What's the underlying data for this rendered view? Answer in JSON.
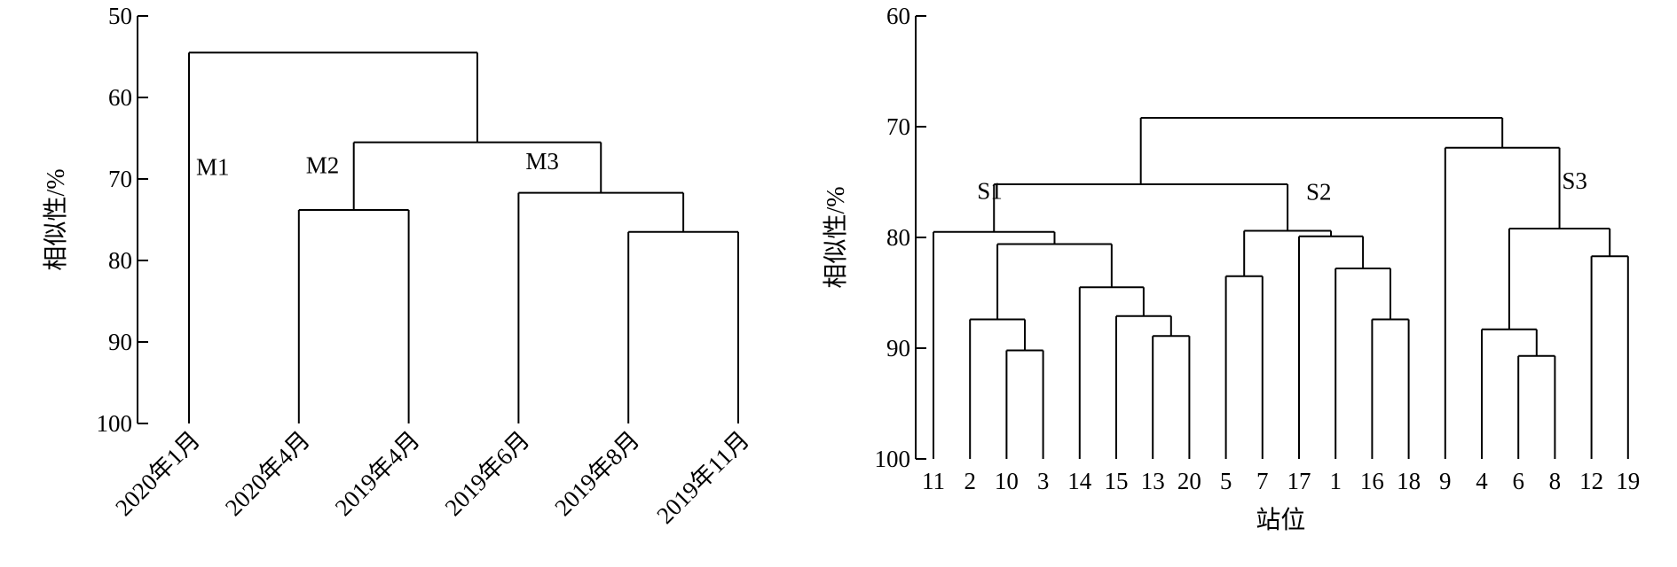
{
  "chart_data": [
    {
      "type": "dendrogram",
      "ylabel": "相似性/%",
      "xlabel": "",
      "ylim": [
        50,
        100
      ],
      "yticks": [
        50,
        60,
        70,
        80,
        90,
        100
      ],
      "leaves": [
        "2020年1月",
        "2020年4月",
        "2019年4月",
        "2019年6月",
        "2019年8月",
        "2019年11月"
      ],
      "merges": [
        {
          "left": "2019年8月",
          "right": "2019年11月",
          "similarity": 76.5
        },
        {
          "left": "2019年6月",
          "right": [
            "2019年8月",
            "2019年11月"
          ],
          "similarity": 71.7
        },
        {
          "left": "2020年4月",
          "right": "2019年4月",
          "similarity": 73.8
        },
        {
          "left": [
            "2020年4月",
            "2019年4月"
          ],
          "right": [
            "2019年6月",
            "2019年8月",
            "2019年11月"
          ],
          "similarity": 65.5
        },
        {
          "left": "2020年1月",
          "right": [
            "2020年4月",
            "2019年4月",
            "2019年6月",
            "2019年8月",
            "2019年11月"
          ],
          "similarity": 54.5
        }
      ],
      "tree": {
        "h": 54.5,
        "c": [
          {
            "leaf": "2020年1月"
          },
          {
            "h": 65.5,
            "c": [
              {
                "h": 73.8,
                "c": [
                  {
                    "leaf": "2020年4月"
                  },
                  {
                    "leaf": "2019年4月"
                  }
                ]
              },
              {
                "h": 71.7,
                "c": [
                  {
                    "leaf": "2019年6月"
                  },
                  {
                    "h": 76.5,
                    "c": [
                      {
                        "leaf": "2019年8月"
                      },
                      {
                        "leaf": "2019年11月"
                      }
                    ]
                  }
                ]
              }
            ]
          }
        ]
      },
      "cluster_labels": [
        {
          "text": "M1",
          "anchor_leaf": "2020年1月",
          "similarity": 69.5
        },
        {
          "text": "M2",
          "anchor_leaf": "2020年4月",
          "similarity": 69.3
        },
        {
          "text": "M3",
          "anchor_leaf": "2019年6月",
          "similarity": 68.8
        }
      ]
    },
    {
      "type": "dendrogram",
      "ylabel": "相似性/%",
      "xlabel": "站位",
      "ylim": [
        60,
        100
      ],
      "yticks": [
        60,
        70,
        80,
        90,
        100
      ],
      "leaves": [
        "11",
        "2",
        "10",
        "3",
        "14",
        "15",
        "13",
        "20",
        "5",
        "7",
        "17",
        "1",
        "16",
        "18",
        "9",
        "4",
        "6",
        "8",
        "12",
        "19"
      ],
      "merges": [
        {
          "left": "10",
          "right": "3",
          "similarity": 90.2
        },
        {
          "left": "2",
          "right": [
            "10",
            "3"
          ],
          "similarity": 87.4
        },
        {
          "left": "13",
          "right": "20",
          "similarity": 88.9
        },
        {
          "left": "15",
          "right": [
            "13",
            "20"
          ],
          "similarity": 87.1
        },
        {
          "left": "14",
          "right": [
            "15",
            "13",
            "20"
          ],
          "similarity": 84.5
        },
        {
          "left": [
            "2",
            "10",
            "3"
          ],
          "right": [
            "14",
            "15",
            "13",
            "20"
          ],
          "similarity": 80.6
        },
        {
          "left": "11",
          "right": [
            "2",
            "10",
            "3",
            "14",
            "15",
            "13",
            "20"
          ],
          "similarity": 79.5
        },
        {
          "left": "16",
          "right": "18",
          "similarity": 87.4
        },
        {
          "left": "1",
          "right": [
            "16",
            "18"
          ],
          "similarity": 82.8
        },
        {
          "left": "17",
          "right": [
            "1",
            "16",
            "18"
          ],
          "similarity": 79.9
        },
        {
          "left": "5",
          "right": "7",
          "similarity": 83.5
        },
        {
          "left": [
            "5",
            "7"
          ],
          "right": [
            "17",
            "1",
            "16",
            "18"
          ],
          "similarity": 79.4
        },
        {
          "left": [
            "11",
            "2",
            "10",
            "3",
            "14",
            "15",
            "13",
            "20"
          ],
          "right": [
            "5",
            "7",
            "17",
            "1",
            "16",
            "18"
          ],
          "similarity": 75.2
        },
        {
          "left": "6",
          "right": "8",
          "similarity": 90.7
        },
        {
          "left": "4",
          "right": [
            "6",
            "8"
          ],
          "similarity": 88.3
        },
        {
          "left": "12",
          "right": "19",
          "similarity": 81.7
        },
        {
          "left": [
            "4",
            "6",
            "8"
          ],
          "right": [
            "12",
            "19"
          ],
          "similarity": 79.2
        },
        {
          "left": "9",
          "right": [
            "4",
            "6",
            "8",
            "12",
            "19"
          ],
          "similarity": 71.9
        },
        {
          "left": [
            "11",
            "2",
            "10",
            "3",
            "14",
            "15",
            "13",
            "20",
            "5",
            "7",
            "17",
            "1",
            "16",
            "18"
          ],
          "right": [
            "9",
            "4",
            "6",
            "8",
            "12",
            "19"
          ],
          "similarity": 69.2
        }
      ],
      "tree": {
        "h": 69.2,
        "c": [
          {
            "h": 75.2,
            "c": [
              {
                "h": 79.5,
                "c": [
                  {
                    "leaf": "11"
                  },
                  {
                    "h": 80.6,
                    "c": [
                      {
                        "h": 87.4,
                        "c": [
                          {
                            "leaf": "2"
                          },
                          {
                            "h": 90.2,
                            "c": [
                              {
                                "leaf": "10"
                              },
                              {
                                "leaf": "3"
                              }
                            ]
                          }
                        ]
                      },
                      {
                        "h": 84.5,
                        "c": [
                          {
                            "leaf": "14"
                          },
                          {
                            "h": 87.1,
                            "c": [
                              {
                                "leaf": "15"
                              },
                              {
                                "h": 88.9,
                                "c": [
                                  {
                                    "leaf": "13"
                                  },
                                  {
                                    "leaf": "20"
                                  }
                                ]
                              }
                            ]
                          }
                        ]
                      }
                    ]
                  }
                ]
              },
              {
                "h": 79.4,
                "c": [
                  {
                    "h": 83.5,
                    "c": [
                      {
                        "leaf": "5"
                      },
                      {
                        "leaf": "7"
                      }
                    ]
                  },
                  {
                    "h": 79.9,
                    "c": [
                      {
                        "leaf": "17"
                      },
                      {
                        "h": 82.8,
                        "c": [
                          {
                            "leaf": "1"
                          },
                          {
                            "h": 87.4,
                            "c": [
                              {
                                "leaf": "16"
                              },
                              {
                                "leaf": "18"
                              }
                            ]
                          }
                        ]
                      }
                    ]
                  }
                ]
              }
            ]
          },
          {
            "h": 71.9,
            "c": [
              {
                "leaf": "9"
              },
              {
                "h": 79.2,
                "c": [
                  {
                    "h": 88.3,
                    "c": [
                      {
                        "leaf": "4"
                      },
                      {
                        "h": 90.7,
                        "c": [
                          {
                            "leaf": "6"
                          },
                          {
                            "leaf": "8"
                          }
                        ]
                      }
                    ]
                  },
                  {
                    "h": 81.7,
                    "c": [
                      {
                        "leaf": "12"
                      },
                      {
                        "leaf": "19"
                      }
                    ]
                  }
                ]
              }
            ]
          }
        ]
      },
      "cluster_labels": [
        {
          "text": "S1",
          "anchor_leaf": "2",
          "similarity": 76.5
        },
        {
          "text": "S2",
          "anchor_leaf": "17",
          "similarity": 76.6
        },
        {
          "text": "S3",
          "anchor_leaf": "8",
          "similarity": 75.6
        }
      ]
    }
  ]
}
